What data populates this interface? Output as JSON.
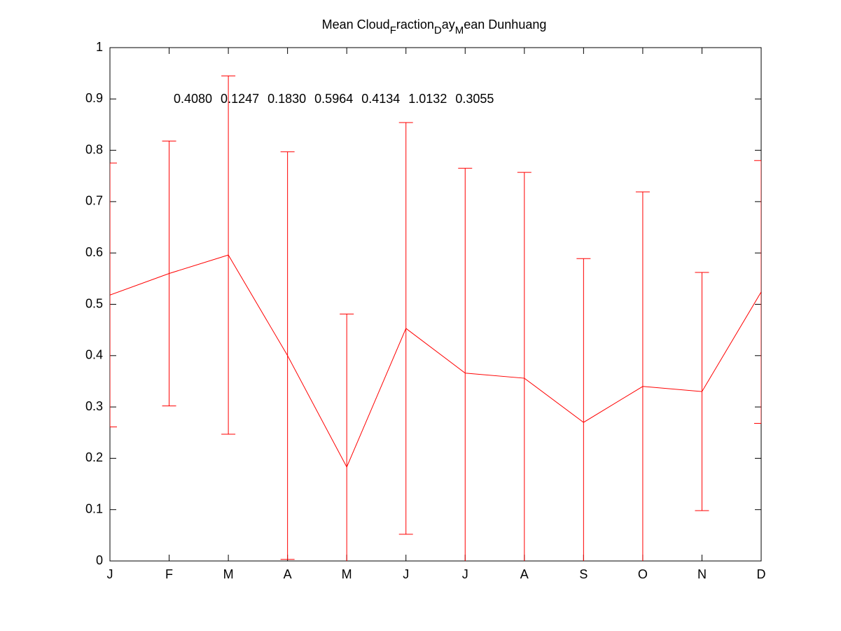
{
  "chart_data": {
    "type": "errorbar",
    "title": [
      "Mean Cloud",
      "F",
      "raction",
      "D",
      "ay",
      "M",
      "ean Dunhuang"
    ],
    "annotation": "0.4080 0.1247 0.1830 0.5964 0.4134 1.0132 0.3055",
    "categories": [
      "J",
      "F",
      "M",
      "A",
      "M",
      "J",
      "J",
      "A",
      "S",
      "O",
      "N",
      "D"
    ],
    "values": [
      0.518,
      0.56,
      0.596,
      0.4,
      0.183,
      0.453,
      0.366,
      0.356,
      0.27,
      0.34,
      0.33,
      0.524
    ],
    "errors": [
      0.257,
      0.258,
      0.349,
      0.397,
      0.298,
      0.401,
      0.399,
      0.401,
      0.319,
      0.379,
      0.232,
      0.256
    ],
    "color": "#ff0000",
    "ylim": [
      0,
      1
    ],
    "yticks": [
      0,
      0.1,
      0.2,
      0.3,
      0.4,
      0.5,
      0.6,
      0.7,
      0.8,
      0.9,
      1
    ],
    "grid": false
  }
}
